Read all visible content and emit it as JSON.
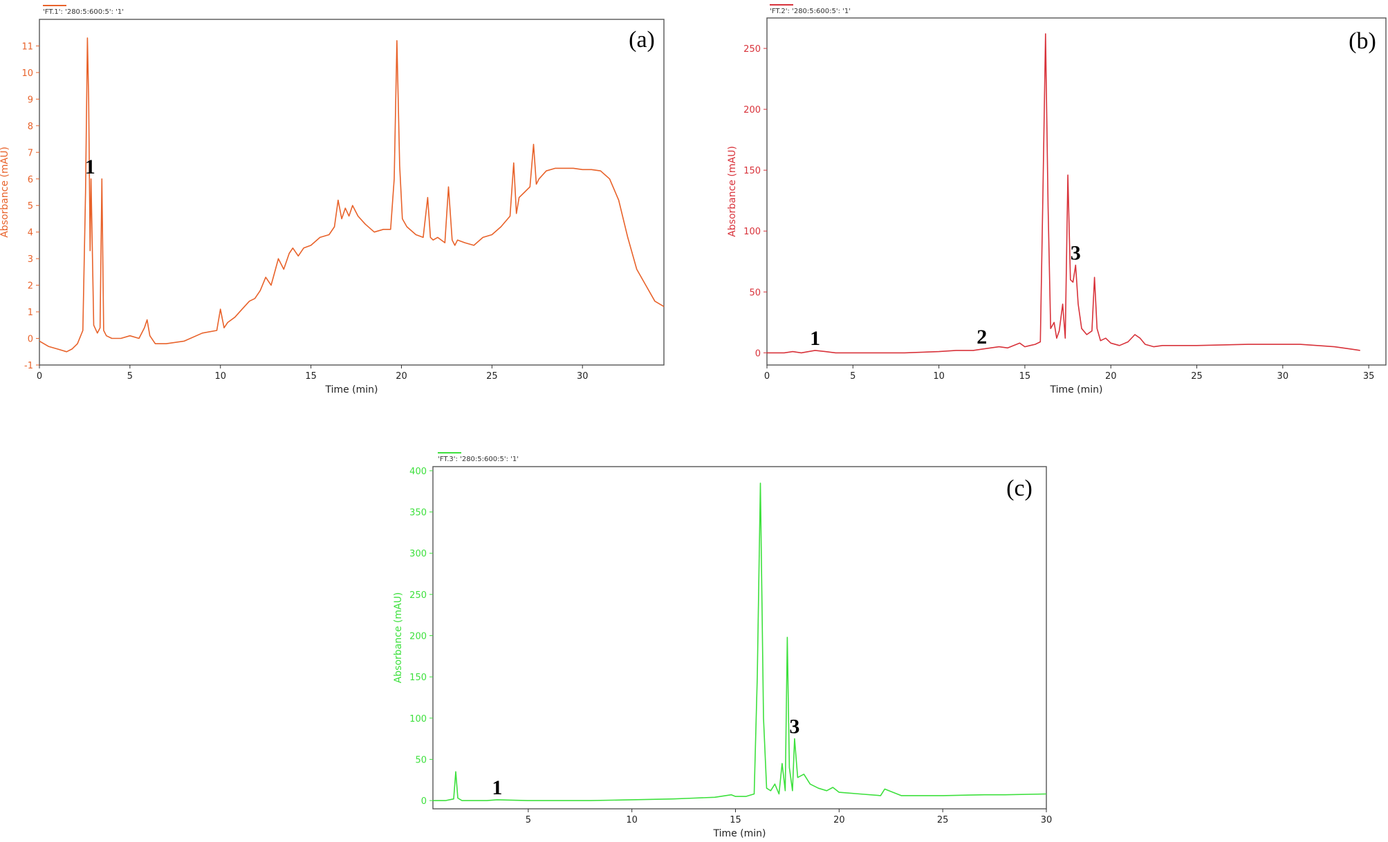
{
  "chart_data": [
    {
      "type": "line",
      "panel": "(a)",
      "legend": "'FT.1': '280:5:600:5': '1'",
      "color": "#e8622a",
      "xlabel": "Time (min)",
      "ylabel": "Absorbance (mAU)",
      "xlim": [
        0,
        34.5
      ],
      "ylim": [
        -1,
        12
      ],
      "xticks": [
        0,
        5,
        10,
        15,
        20,
        25,
        30
      ],
      "yticks": [
        -1,
        0,
        1,
        2,
        3,
        4,
        5,
        6,
        7,
        8,
        9,
        10,
        11
      ],
      "series": [
        {
          "x": [
            0,
            0.5,
            1,
            1.5,
            1.8,
            2.1,
            2.4,
            2.55,
            2.65,
            2.72,
            2.8,
            2.85,
            2.92,
            3.0,
            3.2,
            3.35,
            3.45,
            3.55,
            3.7,
            4,
            4.5,
            5,
            5.5,
            5.8,
            5.95,
            6.1,
            6.4,
            7,
            8,
            9,
            9.8,
            10.0,
            10.2,
            10.4,
            10.8,
            11.2,
            11.6,
            11.9,
            12.2,
            12.5,
            12.8,
            13.0,
            13.2,
            13.5,
            13.8,
            14.0,
            14.3,
            14.6,
            15,
            15.5,
            16,
            16.3,
            16.5,
            16.7,
            16.9,
            17.1,
            17.3,
            17.6,
            18,
            18.5,
            19,
            19.4,
            19.6,
            19.75,
            19.9,
            20.05,
            20.3,
            20.8,
            21.2,
            21.45,
            21.6,
            21.75,
            22,
            22.4,
            22.6,
            22.8,
            22.95,
            23.1,
            23.5,
            24,
            24.5,
            25,
            25.5,
            26,
            26.2,
            26.35,
            26.5,
            26.8,
            27.1,
            27.3,
            27.45,
            27.6,
            28,
            28.5,
            29,
            29.5,
            30,
            30.5,
            31,
            31.5,
            32,
            32.5,
            33,
            33.5,
            34,
            34.5
          ],
          "y": [
            -0.1,
            -0.3,
            -0.4,
            -0.5,
            -0.4,
            -0.2,
            0.3,
            5.5,
            11.3,
            9.0,
            3.3,
            6.0,
            3.5,
            0.5,
            0.2,
            0.4,
            6.0,
            0.3,
            0.1,
            0.0,
            0.0,
            0.1,
            0.0,
            0.4,
            0.7,
            0.1,
            -0.2,
            -0.2,
            -0.1,
            0.2,
            0.3,
            1.1,
            0.4,
            0.6,
            0.8,
            1.1,
            1.4,
            1.5,
            1.8,
            2.3,
            2.0,
            2.5,
            3.0,
            2.6,
            3.2,
            3.4,
            3.1,
            3.4,
            3.5,
            3.8,
            3.9,
            4.2,
            5.2,
            4.5,
            4.9,
            4.6,
            5.0,
            4.6,
            4.3,
            4.0,
            4.1,
            4.1,
            6.0,
            11.2,
            6.5,
            4.5,
            4.2,
            3.9,
            3.8,
            5.3,
            3.8,
            3.7,
            3.8,
            3.6,
            5.7,
            3.7,
            3.5,
            3.7,
            3.6,
            3.5,
            3.8,
            3.9,
            4.2,
            4.6,
            6.6,
            4.7,
            5.3,
            5.5,
            5.7,
            7.3,
            5.8,
            6.0,
            6.3,
            6.4,
            6.4,
            6.4,
            6.35,
            6.35,
            6.3,
            6.0,
            5.2,
            3.8,
            2.6,
            2.0,
            1.4,
            1.2
          ]
        }
      ],
      "annotations": [
        {
          "text": "1",
          "x": 2.8,
          "y": 6.0
        }
      ]
    },
    {
      "type": "line",
      "panel": "(b)",
      "legend": "'FT.2': '280:5:600:5': '1'",
      "color": "#d8323a",
      "xlabel": "Time (min)",
      "ylabel": "Absorbance (mAU)",
      "xlim": [
        0,
        36
      ],
      "ylim": [
        -10,
        275
      ],
      "xticks": [
        0,
        5,
        10,
        15,
        20,
        25,
        30,
        35
      ],
      "yticks": [
        0,
        50,
        100,
        150,
        200,
        250
      ],
      "series": [
        {
          "x": [
            0,
            1,
            1.5,
            2,
            2.8,
            3.4,
            4,
            6,
            8,
            10,
            11,
            12,
            12.5,
            13,
            13.5,
            14,
            14.7,
            15,
            15.3,
            15.6,
            15.9,
            16.05,
            16.2,
            16.35,
            16.5,
            16.7,
            16.85,
            17.0,
            17.2,
            17.35,
            17.5,
            17.65,
            17.8,
            17.95,
            18.1,
            18.3,
            18.6,
            18.9,
            19.05,
            19.2,
            19.4,
            19.7,
            20,
            20.5,
            21,
            21.4,
            21.7,
            22,
            22.5,
            23,
            25,
            28,
            30,
            31,
            32,
            33,
            34,
            34.5
          ],
          "y": [
            0,
            0,
            1,
            0,
            2,
            1,
            0,
            0,
            0,
            1,
            2,
            2,
            3,
            4,
            5,
            4,
            8,
            5,
            6,
            7,
            9,
            130,
            262,
            120,
            20,
            25,
            12,
            18,
            40,
            12,
            146,
            60,
            58,
            72,
            40,
            20,
            15,
            18,
            62,
            20,
            10,
            12,
            8,
            6,
            9,
            15,
            12,
            7,
            5,
            6,
            6,
            7,
            7,
            7,
            6,
            5,
            3,
            2
          ]
        }
      ],
      "annotations": [
        {
          "text": "1",
          "x": 2.8,
          "y": 2
        },
        {
          "text": "2",
          "x": 12.5,
          "y": 3
        },
        {
          "text": "3",
          "x": 17.95,
          "y": 72
        }
      ]
    },
    {
      "type": "line",
      "panel": "(c)",
      "legend": "'FT.3': '280:5:600:5': '1'",
      "color": "#3de03d",
      "xlabel": "Time (min)",
      "ylabel": "Absorbance (mAU)",
      "xlim": [
        0.4,
        30
      ],
      "ylim": [
        -10,
        405
      ],
      "xticks": [
        5,
        10,
        15,
        20,
        25,
        30
      ],
      "yticks": [
        0,
        50,
        100,
        150,
        200,
        250,
        300,
        350,
        400
      ],
      "series": [
        {
          "x": [
            0.4,
            1,
            1.4,
            1.5,
            1.6,
            1.8,
            3,
            3.5,
            5,
            8,
            10,
            12,
            13,
            14,
            14.8,
            15,
            15.5,
            15.9,
            16.05,
            16.2,
            16.35,
            16.5,
            16.7,
            16.9,
            17.1,
            17.25,
            17.4,
            17.5,
            17.6,
            17.75,
            17.85,
            18,
            18.3,
            18.6,
            19,
            19.4,
            19.7,
            20,
            21,
            22,
            22.2,
            23,
            25,
            27,
            28,
            30
          ],
          "y": [
            0,
            0,
            2,
            35,
            3,
            0,
            0,
            1,
            0,
            0,
            1,
            2,
            3,
            4,
            7,
            5,
            5,
            8,
            150,
            385,
            100,
            15,
            12,
            20,
            8,
            45,
            12,
            198,
            40,
            12,
            75,
            28,
            32,
            20,
            15,
            12,
            16,
            10,
            8,
            6,
            14,
            6,
            6,
            7,
            7,
            8
          ]
        }
      ],
      "annotations": [
        {
          "text": "1",
          "x": 3.5,
          "y": 1
        },
        {
          "text": "3",
          "x": 17.85,
          "y": 75
        }
      ]
    }
  ]
}
